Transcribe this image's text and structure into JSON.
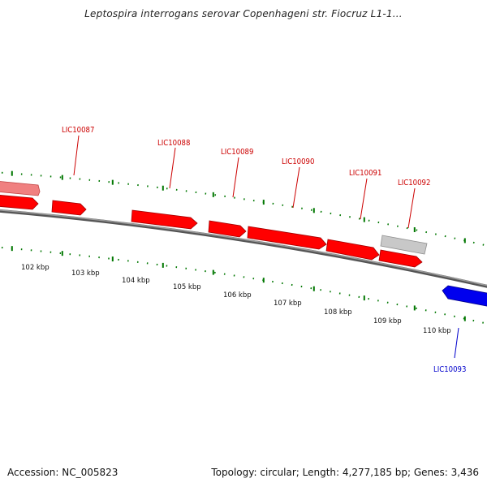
{
  "title": "Leptospira interrogans serovar Copenhageni str. Fiocruz L1-1...",
  "footer": {
    "accession": "Accession: NC_005823",
    "summary": "Topology: circular; Length: 4,277,185 bp; Genes: 3,436"
  },
  "colors": {
    "forward_gene": "#ff0000",
    "forward_gene_faded": "#f08080",
    "reverse_gene": "#0000ff",
    "other_feature": "#c0c0c0",
    "forward_label": "#cc0000",
    "reverse_label": "#0000cc",
    "backbone": "#808080",
    "tick": "#007700"
  },
  "genes": [
    {
      "id": "LIC10087",
      "strand": "+",
      "color": "forward"
    },
    {
      "id": "LIC10088",
      "strand": "+",
      "color": "forward"
    },
    {
      "id": "LIC10089",
      "strand": "+",
      "color": "forward"
    },
    {
      "id": "LIC10090",
      "strand": "+",
      "color": "forward"
    },
    {
      "id": "LIC10091",
      "strand": "+",
      "color": "forward"
    },
    {
      "id": "LIC10092",
      "strand": "+",
      "color": "other"
    },
    {
      "id": "LIC10093",
      "strand": "-",
      "color": "reverse"
    }
  ],
  "scale": {
    "labels": [
      "102 kbp",
      "103 kbp",
      "104 kbp",
      "105 kbp",
      "106 kbp",
      "107 kbp",
      "108 kbp",
      "109 kbp",
      "110 kbp"
    ]
  }
}
